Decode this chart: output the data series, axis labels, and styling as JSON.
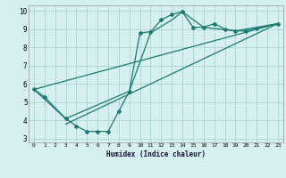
{
  "xlabel": "Humidex (Indice chaleur)",
  "bg_color": "#d6f0f0",
  "grid_color": "#b0d8d8",
  "line_color": "#1a7a6e",
  "xlim": [
    -0.5,
    23.5
  ],
  "ylim": [
    2.8,
    10.3
  ],
  "yticks": [
    3,
    4,
    5,
    6,
    7,
    8,
    9,
    10
  ],
  "xticks": [
    0,
    1,
    2,
    3,
    4,
    5,
    6,
    7,
    8,
    9,
    10,
    11,
    12,
    13,
    14,
    15,
    16,
    17,
    18,
    19,
    20,
    21,
    22,
    23
  ],
  "line1_x": [
    0,
    1,
    3,
    4,
    5,
    6,
    7,
    8,
    9,
    10,
    11,
    12,
    13,
    14,
    15,
    16,
    17,
    18,
    19,
    20,
    21,
    23
  ],
  "line1_y": [
    5.7,
    5.3,
    4.1,
    3.7,
    3.4,
    3.4,
    3.4,
    4.5,
    5.6,
    8.8,
    8.85,
    9.5,
    9.8,
    9.95,
    9.1,
    9.1,
    9.3,
    9.0,
    8.9,
    8.9,
    9.05,
    9.3
  ],
  "line2_x": [
    0,
    3,
    9,
    11,
    13,
    14,
    16,
    19,
    23
  ],
  "line2_y": [
    5.7,
    4.1,
    5.6,
    8.8,
    9.5,
    9.95,
    9.1,
    8.9,
    9.3
  ],
  "line3_x": [
    0,
    23
  ],
  "line3_y": [
    5.7,
    9.3
  ],
  "line4_x": [
    3,
    23
  ],
  "line4_y": [
    3.8,
    9.3
  ]
}
